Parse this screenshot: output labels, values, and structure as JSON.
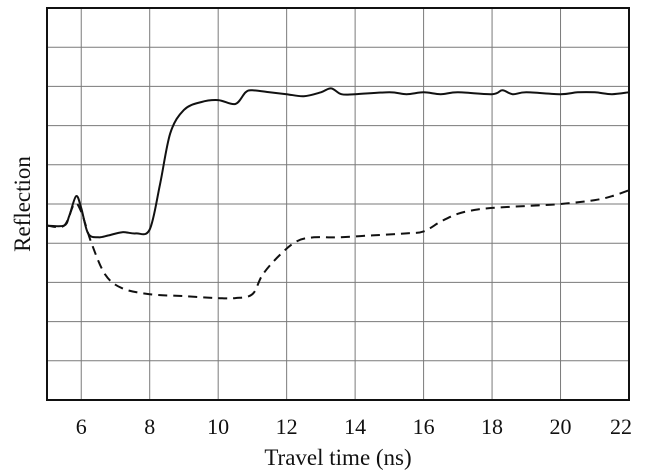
{
  "chart_data": {
    "type": "line",
    "title": "",
    "xlabel": "Travel time (ns)",
    "ylabel": "Reflection",
    "xlim": [
      5,
      22
    ],
    "ylim": [
      0,
      10
    ],
    "x_ticks": [
      6,
      8,
      10,
      12,
      14,
      16,
      18,
      20,
      22
    ],
    "x_tick_labels": [
      "6",
      "8",
      "10",
      "12",
      "14",
      "16",
      "18",
      "20",
      "22"
    ],
    "x_grid": [
      5,
      6,
      8,
      10,
      12,
      14,
      16,
      18,
      20,
      22
    ],
    "y_gridlines": 10,
    "y_tick_labels_shown": false,
    "grid": true,
    "legend": "none",
    "series": [
      {
        "style": "solid",
        "color": "#111111",
        "points": [
          [
            5.0,
            4.45
          ],
          [
            5.5,
            4.45
          ],
          [
            5.65,
            4.7
          ],
          [
            5.85,
            5.2
          ],
          [
            6.0,
            4.9
          ],
          [
            6.2,
            4.25
          ],
          [
            6.5,
            4.15
          ],
          [
            6.8,
            4.2
          ],
          [
            7.2,
            4.28
          ],
          [
            7.6,
            4.25
          ],
          [
            8.0,
            4.35
          ],
          [
            8.3,
            5.5
          ],
          [
            8.6,
            6.8
          ],
          [
            9.0,
            7.4
          ],
          [
            9.5,
            7.6
          ],
          [
            10.0,
            7.65
          ],
          [
            10.5,
            7.55
          ],
          [
            10.8,
            7.85
          ],
          [
            11.0,
            7.9
          ],
          [
            11.5,
            7.85
          ],
          [
            12.0,
            7.8
          ],
          [
            12.5,
            7.75
          ],
          [
            13.0,
            7.85
          ],
          [
            13.3,
            7.95
          ],
          [
            13.6,
            7.8
          ],
          [
            14.0,
            7.8
          ],
          [
            15.0,
            7.85
          ],
          [
            15.5,
            7.8
          ],
          [
            16.0,
            7.85
          ],
          [
            16.5,
            7.8
          ],
          [
            17.0,
            7.85
          ],
          [
            18.0,
            7.8
          ],
          [
            18.3,
            7.9
          ],
          [
            18.6,
            7.8
          ],
          [
            19.0,
            7.85
          ],
          [
            20.0,
            7.8
          ],
          [
            20.5,
            7.85
          ],
          [
            21.0,
            7.85
          ],
          [
            21.5,
            7.8
          ],
          [
            22.0,
            7.85
          ]
        ]
      },
      {
        "style": "dashed",
        "color": "#111111",
        "points": [
          [
            5.0,
            4.45
          ],
          [
            5.5,
            4.45
          ],
          [
            5.8,
            5.0
          ],
          [
            6.0,
            4.8
          ],
          [
            6.3,
            4.0
          ],
          [
            6.7,
            3.2
          ],
          [
            7.2,
            2.85
          ],
          [
            8.0,
            2.7
          ],
          [
            9.0,
            2.65
          ],
          [
            10.0,
            2.6
          ],
          [
            10.5,
            2.6
          ],
          [
            11.0,
            2.7
          ],
          [
            11.3,
            3.2
          ],
          [
            11.8,
            3.7
          ],
          [
            12.3,
            4.05
          ],
          [
            12.8,
            4.15
          ],
          [
            13.5,
            4.15
          ],
          [
            14.5,
            4.2
          ],
          [
            15.5,
            4.25
          ],
          [
            16.0,
            4.3
          ],
          [
            16.5,
            4.55
          ],
          [
            17.0,
            4.75
          ],
          [
            17.5,
            4.85
          ],
          [
            18.0,
            4.9
          ],
          [
            19.0,
            4.95
          ],
          [
            20.0,
            5.0
          ],
          [
            21.0,
            5.1
          ],
          [
            21.5,
            5.2
          ],
          [
            22.0,
            5.35
          ]
        ]
      }
    ]
  }
}
